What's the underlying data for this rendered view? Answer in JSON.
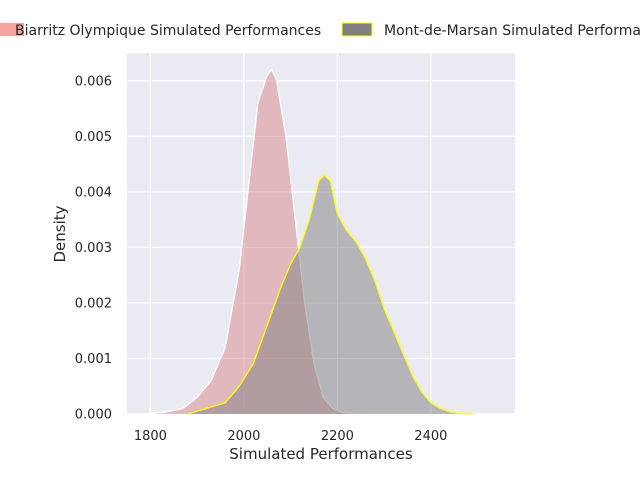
{
  "chart_data": {
    "type": "area",
    "xlabel": "Simulated Performances",
    "ylabel": "Density",
    "xlim": [
      1750,
      2580
    ],
    "ylim": [
      0,
      0.0065
    ],
    "x_ticks": [
      1800,
      2000,
      2200,
      2400
    ],
    "x_tick_labels": [
      "1800",
      "2000",
      "2200",
      "2400"
    ],
    "y_ticks": [
      0,
      0.001,
      0.002,
      0.003,
      0.004,
      0.005,
      0.006
    ],
    "y_tick_labels": [
      "0.000",
      "0.001",
      "0.002",
      "0.003",
      "0.004",
      "0.005",
      "0.006"
    ],
    "grid": true,
    "legend_position": "top",
    "series": [
      {
        "name": "Biarritz Olympique Simulated Performances",
        "color": "#d9868c",
        "line_color": "#ffffff",
        "legend_color": "#f4a49e",
        "x": [
          1790,
          1830,
          1870,
          1900,
          1930,
          1960,
          1990,
          2010,
          2030,
          2050,
          2060,
          2070,
          2090,
          2110,
          2130,
          2150,
          2170,
          2190,
          2210,
          2240,
          2270
        ],
        "y": [
          0.0,
          3e-05,
          0.0001,
          0.0003,
          0.0006,
          0.0012,
          0.0026,
          0.0041,
          0.0056,
          0.0061,
          0.0062,
          0.006,
          0.005,
          0.0035,
          0.002,
          0.0009,
          0.0003,
          0.0001,
          3e-05,
          1e-05,
          0.0
        ]
      },
      {
        "name": "Mont-de-Marsan Simulated Performances",
        "color": "#7f7f7f",
        "line_color": "#ffff00",
        "legend_color": "#808080",
        "x": [
          1880,
          1920,
          1960,
          1990,
          2020,
          2050,
          2080,
          2100,
          2120,
          2140,
          2160,
          2172,
          2185,
          2200,
          2220,
          2240,
          2260,
          2280,
          2300,
          2320,
          2340,
          2360,
          2380,
          2400,
          2420,
          2440,
          2460,
          2490
        ],
        "y": [
          0.0,
          0.0001,
          0.0002,
          0.0005,
          0.0009,
          0.0016,
          0.0023,
          0.0027,
          0.003,
          0.0035,
          0.0042,
          0.0043,
          0.0042,
          0.0036,
          0.0033,
          0.0031,
          0.0028,
          0.0024,
          0.0019,
          0.0015,
          0.0011,
          0.0007,
          0.0004,
          0.0002,
          0.0001,
          4e-05,
          1e-05,
          0.0
        ]
      }
    ]
  }
}
